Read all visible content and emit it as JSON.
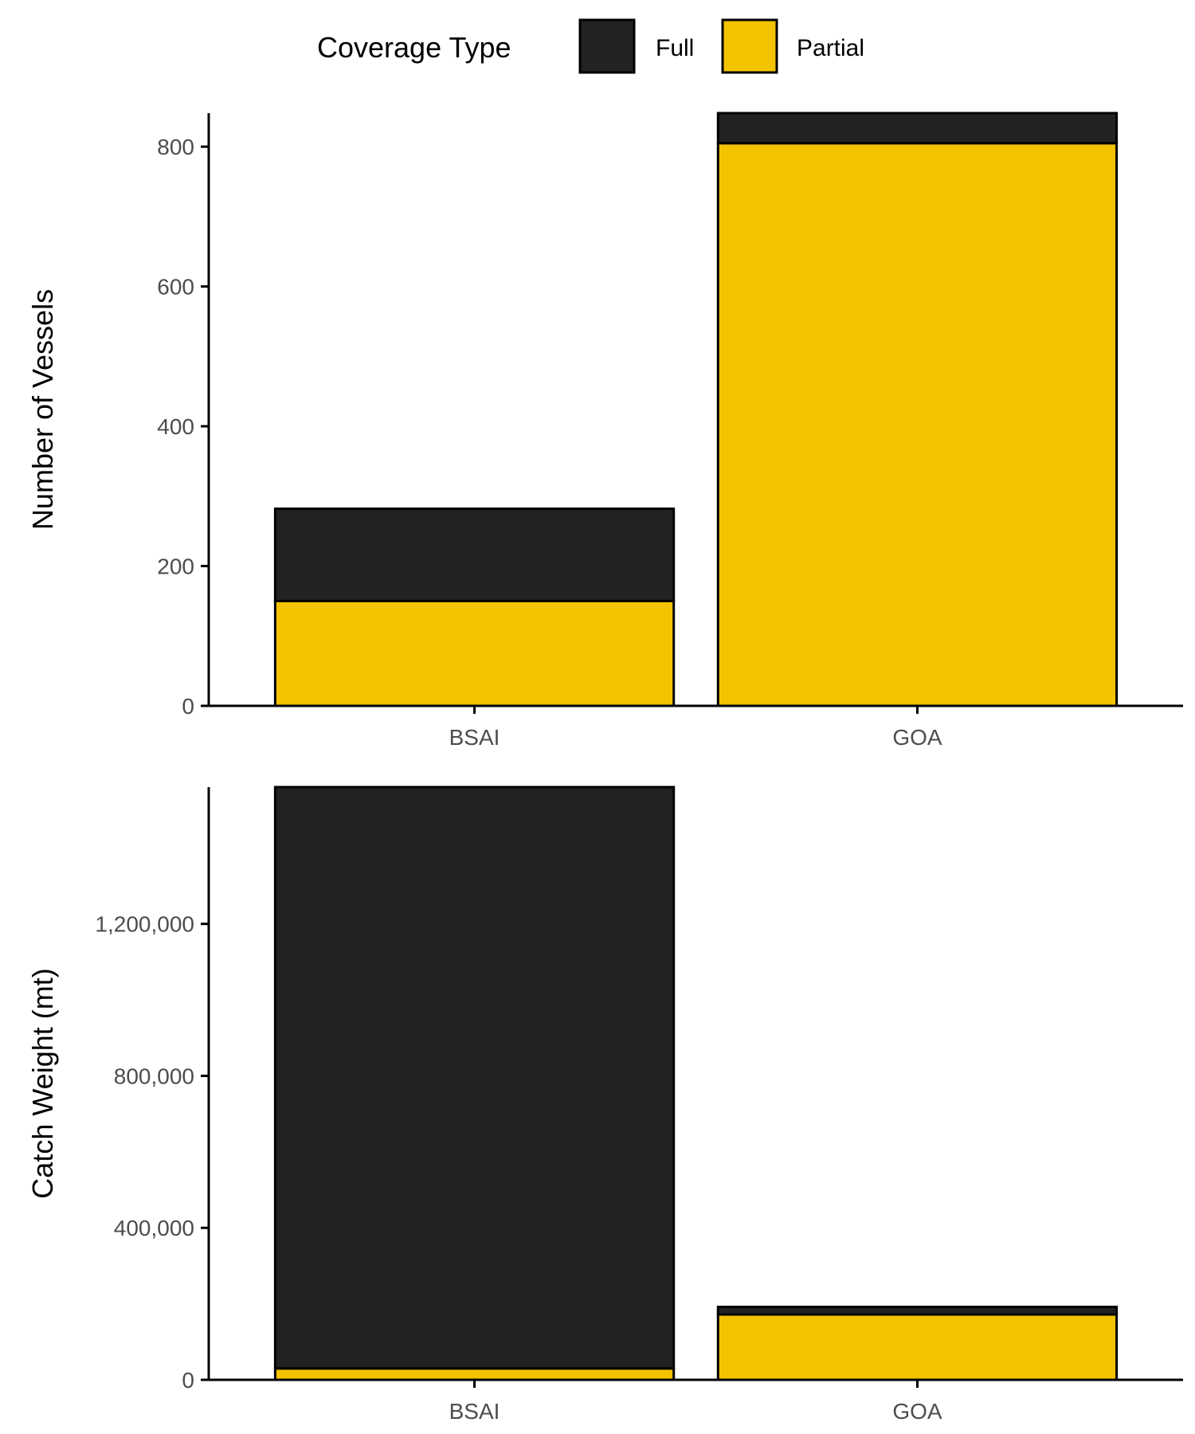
{
  "legend": {
    "title": "Coverage Type",
    "entries": [
      {
        "name": "Full",
        "color": "#222222"
      },
      {
        "name": "Partial",
        "color": "#F4C300"
      }
    ]
  },
  "chart_data": [
    {
      "type": "bar",
      "stacked": true,
      "categories": [
        "BSAI",
        "GOA"
      ],
      "series": [
        {
          "name": "Full",
          "values": [
            132,
            43
          ]
        },
        {
          "name": "Partial",
          "values": [
            150,
            805
          ]
        }
      ],
      "xlabel": "",
      "ylabel": "Number of Vessels",
      "ylim": [
        0,
        848
      ],
      "yticks": [
        0,
        200,
        400,
        600,
        800
      ],
      "ytick_labels": [
        "0",
        "200",
        "400",
        "600",
        "800"
      ],
      "legend_position": "top"
    },
    {
      "type": "bar",
      "stacked": true,
      "categories": [
        "BSAI",
        "GOA"
      ],
      "series": [
        {
          "name": "Full",
          "values": [
            1530000,
            20000
          ]
        },
        {
          "name": "Partial",
          "values": [
            30000,
            172000
          ]
        }
      ],
      "xlabel": "",
      "ylabel": "Catch Weight (mt)",
      "ylim": [
        0,
        1560000
      ],
      "yticks": [
        0,
        400000,
        800000,
        1200000
      ],
      "ytick_labels": [
        "0",
        "400,000",
        "800,000",
        "1,200,000"
      ],
      "legend_position": "top"
    }
  ]
}
